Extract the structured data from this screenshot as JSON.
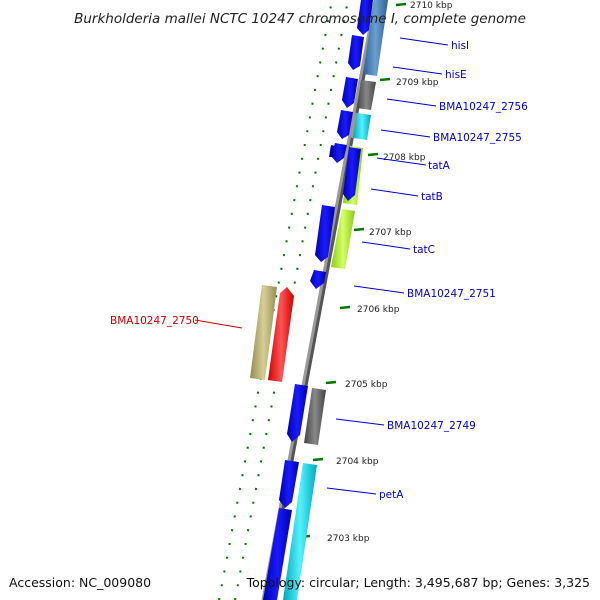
{
  "title": "Burkholderia mallei NCTC 10247 chromosome I, complete genome",
  "accession": "Accession: NC_009080",
  "summary": "Topology: circular; Length: 3,495,687 bp; Genes: 3,325",
  "ticks": [
    "2710 kbp",
    "2709 kbp",
    "2708 kbp",
    "2707 kbp",
    "2706 kbp",
    "2705 kbp",
    "2704 kbp",
    "2703 kbp"
  ],
  "genes": [
    {
      "label": "hisI",
      "color": "#0000cc"
    },
    {
      "label": "hisE",
      "color": "#0000cc"
    },
    {
      "label": "BMA10247_2756",
      "color": "#0000cc"
    },
    {
      "label": "BMA10247_2755",
      "color": "#0000cc"
    },
    {
      "label": "tatA",
      "color": "#0000cc"
    },
    {
      "label": "tatB",
      "color": "#0000cc"
    },
    {
      "label": "tatC",
      "color": "#0000cc"
    },
    {
      "label": "BMA10247_2751",
      "color": "#0000cc"
    },
    {
      "label": "BMA10247_2750",
      "color": "#cc0000"
    },
    {
      "label": "BMA10247_2749",
      "color": "#0000cc"
    },
    {
      "label": "petA",
      "color": "#0000cc"
    }
  ],
  "colors": {
    "cds_blue": "#0000ee",
    "steelblue": "#4a7fb5",
    "gray": "#666666",
    "cyan": "#00d8e8",
    "lime": "#aaee33",
    "red": "#ff0000",
    "khaki": "#b8b070",
    "tick_green": "#007700",
    "backbone": "#8a8a8a"
  }
}
